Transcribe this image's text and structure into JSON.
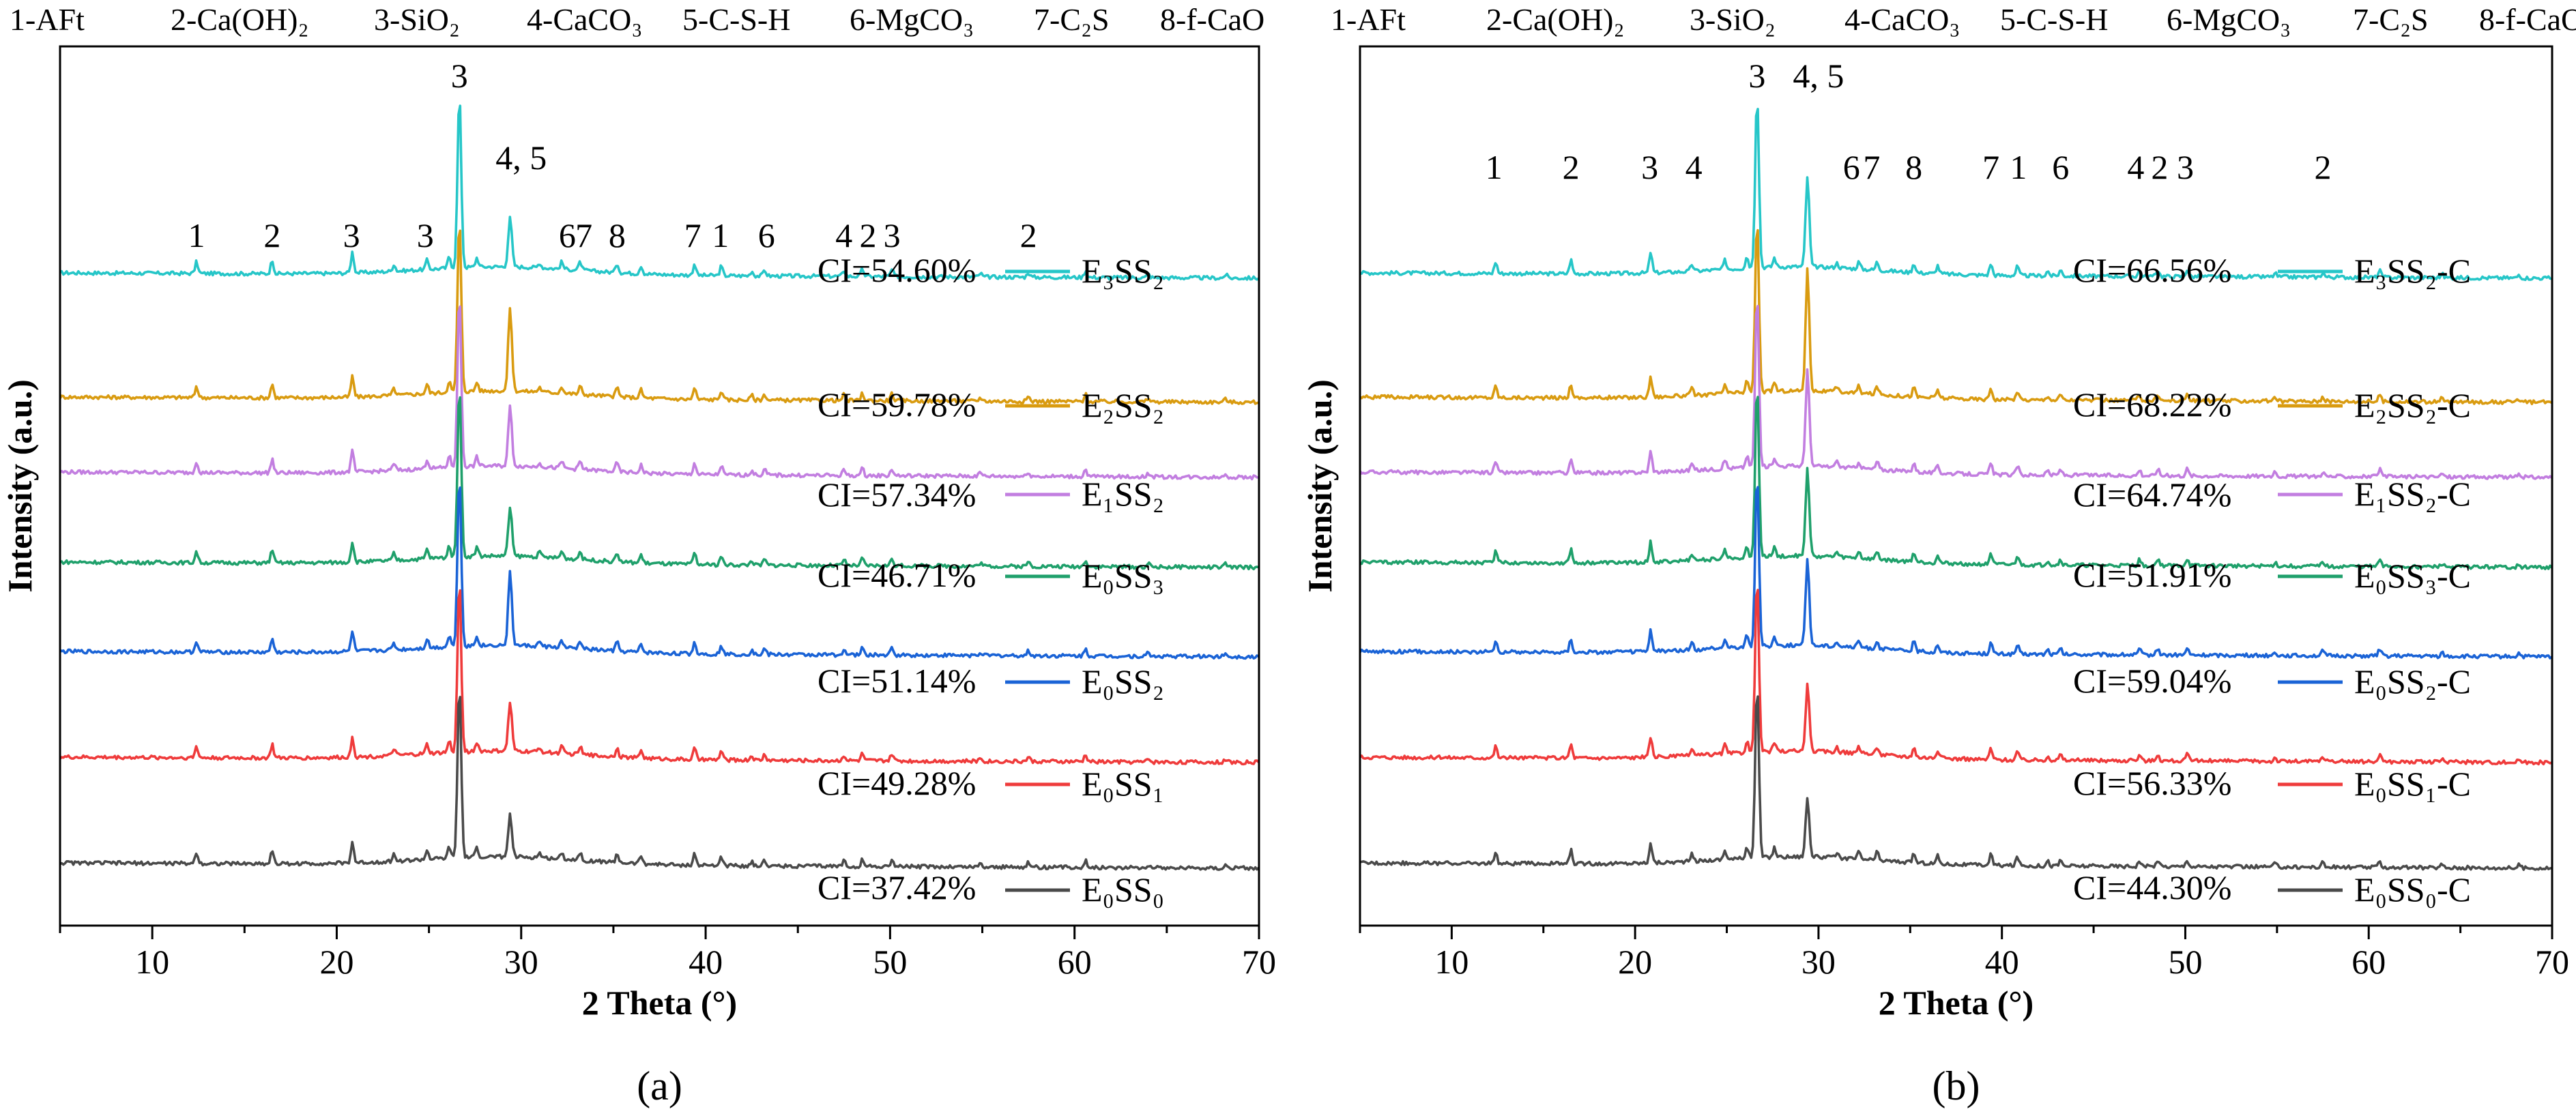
{
  "figure": {
    "phase_legend": [
      "1-AFt",
      "2-Ca(OH)₂",
      "3-SiO₂",
      "4-CaCO₃",
      "5-C-S-H",
      "6-MgCO₃",
      "7-C₂S",
      "8-f-CaO"
    ]
  },
  "chart_data": [
    {
      "type": "line",
      "panel_label": "(a)",
      "xlabel": "2 Theta (°)",
      "ylabel": "Intensity (a.u.)",
      "xlim": [
        5,
        70
      ],
      "xticks": [
        "10",
        "20",
        "30",
        "40",
        "50",
        "60",
        "70"
      ],
      "y_ticks_shown": false,
      "series": [
        {
          "name": "E₃SS₂",
          "ci": "CI=54.60%",
          "color": "#26c6c8"
        },
        {
          "name": "E₂SS₂",
          "ci": "CI=59.78%",
          "color": "#d99b10"
        },
        {
          "name": "E₁SS₂",
          "ci": "CI=57.34%",
          "color": "#c27ee0"
        },
        {
          "name": "E₀SS₃",
          "ci": "CI=46.71%",
          "color": "#1fa06b"
        },
        {
          "name": "E₀SS₂",
          "ci": "CI=51.14%",
          "color": "#1a63d6"
        },
        {
          "name": "E₀SS₁",
          "ci": "CI=49.28%",
          "color": "#ef3b3b"
        },
        {
          "name": "E₀SS₀",
          "ci": "CI=37.42%",
          "color": "#4a4a4a"
        }
      ],
      "peak_annotations": [
        {
          "label": "1",
          "x": 12.4,
          "level": "low"
        },
        {
          "label": "2",
          "x": 16.5,
          "level": "low"
        },
        {
          "label": "3",
          "x": 20.8,
          "level": "low"
        },
        {
          "label": "3",
          "x": 24.8,
          "level": "low"
        },
        {
          "label": "3",
          "x": 26.65,
          "level": "top"
        },
        {
          "label": "4, 5",
          "x": 30.0,
          "level": "mid"
        },
        {
          "label": "6",
          "x": 32.5,
          "level": "low"
        },
        {
          "label": "7",
          "x": 33.4,
          "level": "low"
        },
        {
          "label": "8",
          "x": 35.2,
          "level": "low"
        },
        {
          "label": "7",
          "x": 39.3,
          "level": "low"
        },
        {
          "label": "1",
          "x": 40.8,
          "level": "low"
        },
        {
          "label": "6",
          "x": 43.3,
          "level": "low"
        },
        {
          "label": "4",
          "x": 47.5,
          "level": "low"
        },
        {
          "label": "2",
          "x": 48.8,
          "level": "low"
        },
        {
          "label": "3",
          "x": 50.1,
          "level": "low"
        },
        {
          "label": "2",
          "x": 57.5,
          "level": "low"
        }
      ]
    },
    {
      "type": "line",
      "panel_label": "(b)",
      "xlabel": "2 Theta (°)",
      "ylabel": "Intensity (a.u.)",
      "xlim": [
        5,
        70
      ],
      "xticks": [
        "10",
        "20",
        "30",
        "40",
        "50",
        "60",
        "70"
      ],
      "y_ticks_shown": false,
      "series": [
        {
          "name": "E₃SS₂-C",
          "ci": "CI=66.56%",
          "color": "#26c6c8"
        },
        {
          "name": "E₂SS₂-C",
          "ci": "CI=68.22%",
          "color": "#d99b10"
        },
        {
          "name": "E₁SS₂-C",
          "ci": "CI=64.74%",
          "color": "#c27ee0"
        },
        {
          "name": "E₀SS₃-C",
          "ci": "CI=51.91%",
          "color": "#1fa06b"
        },
        {
          "name": "E₀SS₂-C",
          "ci": "CI=59.04%",
          "color": "#1a63d6"
        },
        {
          "name": "E₀SS₁-C",
          "ci": "CI=56.33%",
          "color": "#ef3b3b"
        },
        {
          "name": "E₀SS₀-C",
          "ci": "CI=44.30%",
          "color": "#4a4a4a"
        }
      ],
      "peak_annotations": [
        {
          "label": "1",
          "x": 12.3,
          "level": "low"
        },
        {
          "label": "2",
          "x": 16.5,
          "level": "low"
        },
        {
          "label": "3",
          "x": 20.8,
          "level": "low"
        },
        {
          "label": "4",
          "x": 23.2,
          "level": "low"
        },
        {
          "label": "3",
          "x": 26.65,
          "level": "top"
        },
        {
          "label": "4, 5",
          "x": 30.0,
          "level": "top"
        },
        {
          "label": "6",
          "x": 31.8,
          "level": "low"
        },
        {
          "label": "7",
          "x": 32.9,
          "level": "low"
        },
        {
          "label": "8",
          "x": 35.2,
          "level": "low"
        },
        {
          "label": "7",
          "x": 39.4,
          "level": "low"
        },
        {
          "label": "1",
          "x": 40.9,
          "level": "low"
        },
        {
          "label": "6",
          "x": 43.2,
          "level": "low"
        },
        {
          "label": "4",
          "x": 47.3,
          "level": "low"
        },
        {
          "label": "2",
          "x": 48.6,
          "level": "low"
        },
        {
          "label": "3",
          "x": 50.0,
          "level": "low"
        },
        {
          "label": "2",
          "x": 57.5,
          "level": "low"
        }
      ]
    }
  ]
}
